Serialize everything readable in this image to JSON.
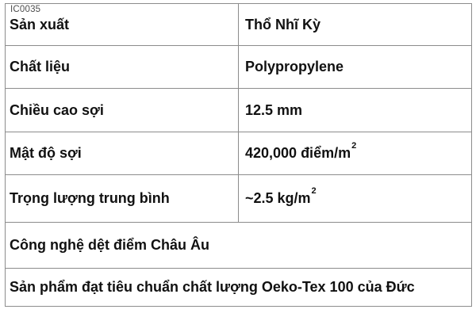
{
  "watermark": "IC0035",
  "colors": {
    "background": "#ffffff",
    "border": "#8c8c8c",
    "text": "#111111",
    "watermark_text": "#4d4d4d"
  },
  "table": {
    "spec_rows": [
      {
        "label": "Sản xuất",
        "value": "Thổ Nhĩ Kỳ",
        "sup": ""
      },
      {
        "label": "Chất liệu",
        "value": "Polypropylene",
        "sup": ""
      },
      {
        "label": "Chiều cao sợi",
        "value": "12.5 mm",
        "sup": ""
      },
      {
        "label": "Mật độ sợi",
        "value": "420,000 điểm/m",
        "sup": "2"
      },
      {
        "label": "Trọng lượng trung bình",
        "value": "~2.5 kg/m",
        "sup": "2"
      }
    ],
    "note_rows": [
      {
        "text": "Công nghệ dệt điểm Châu Âu"
      },
      {
        "text": "Sản phẩm đạt tiêu chuẩn chất lượng Oeko-Tex 100 của Đức"
      }
    ]
  }
}
